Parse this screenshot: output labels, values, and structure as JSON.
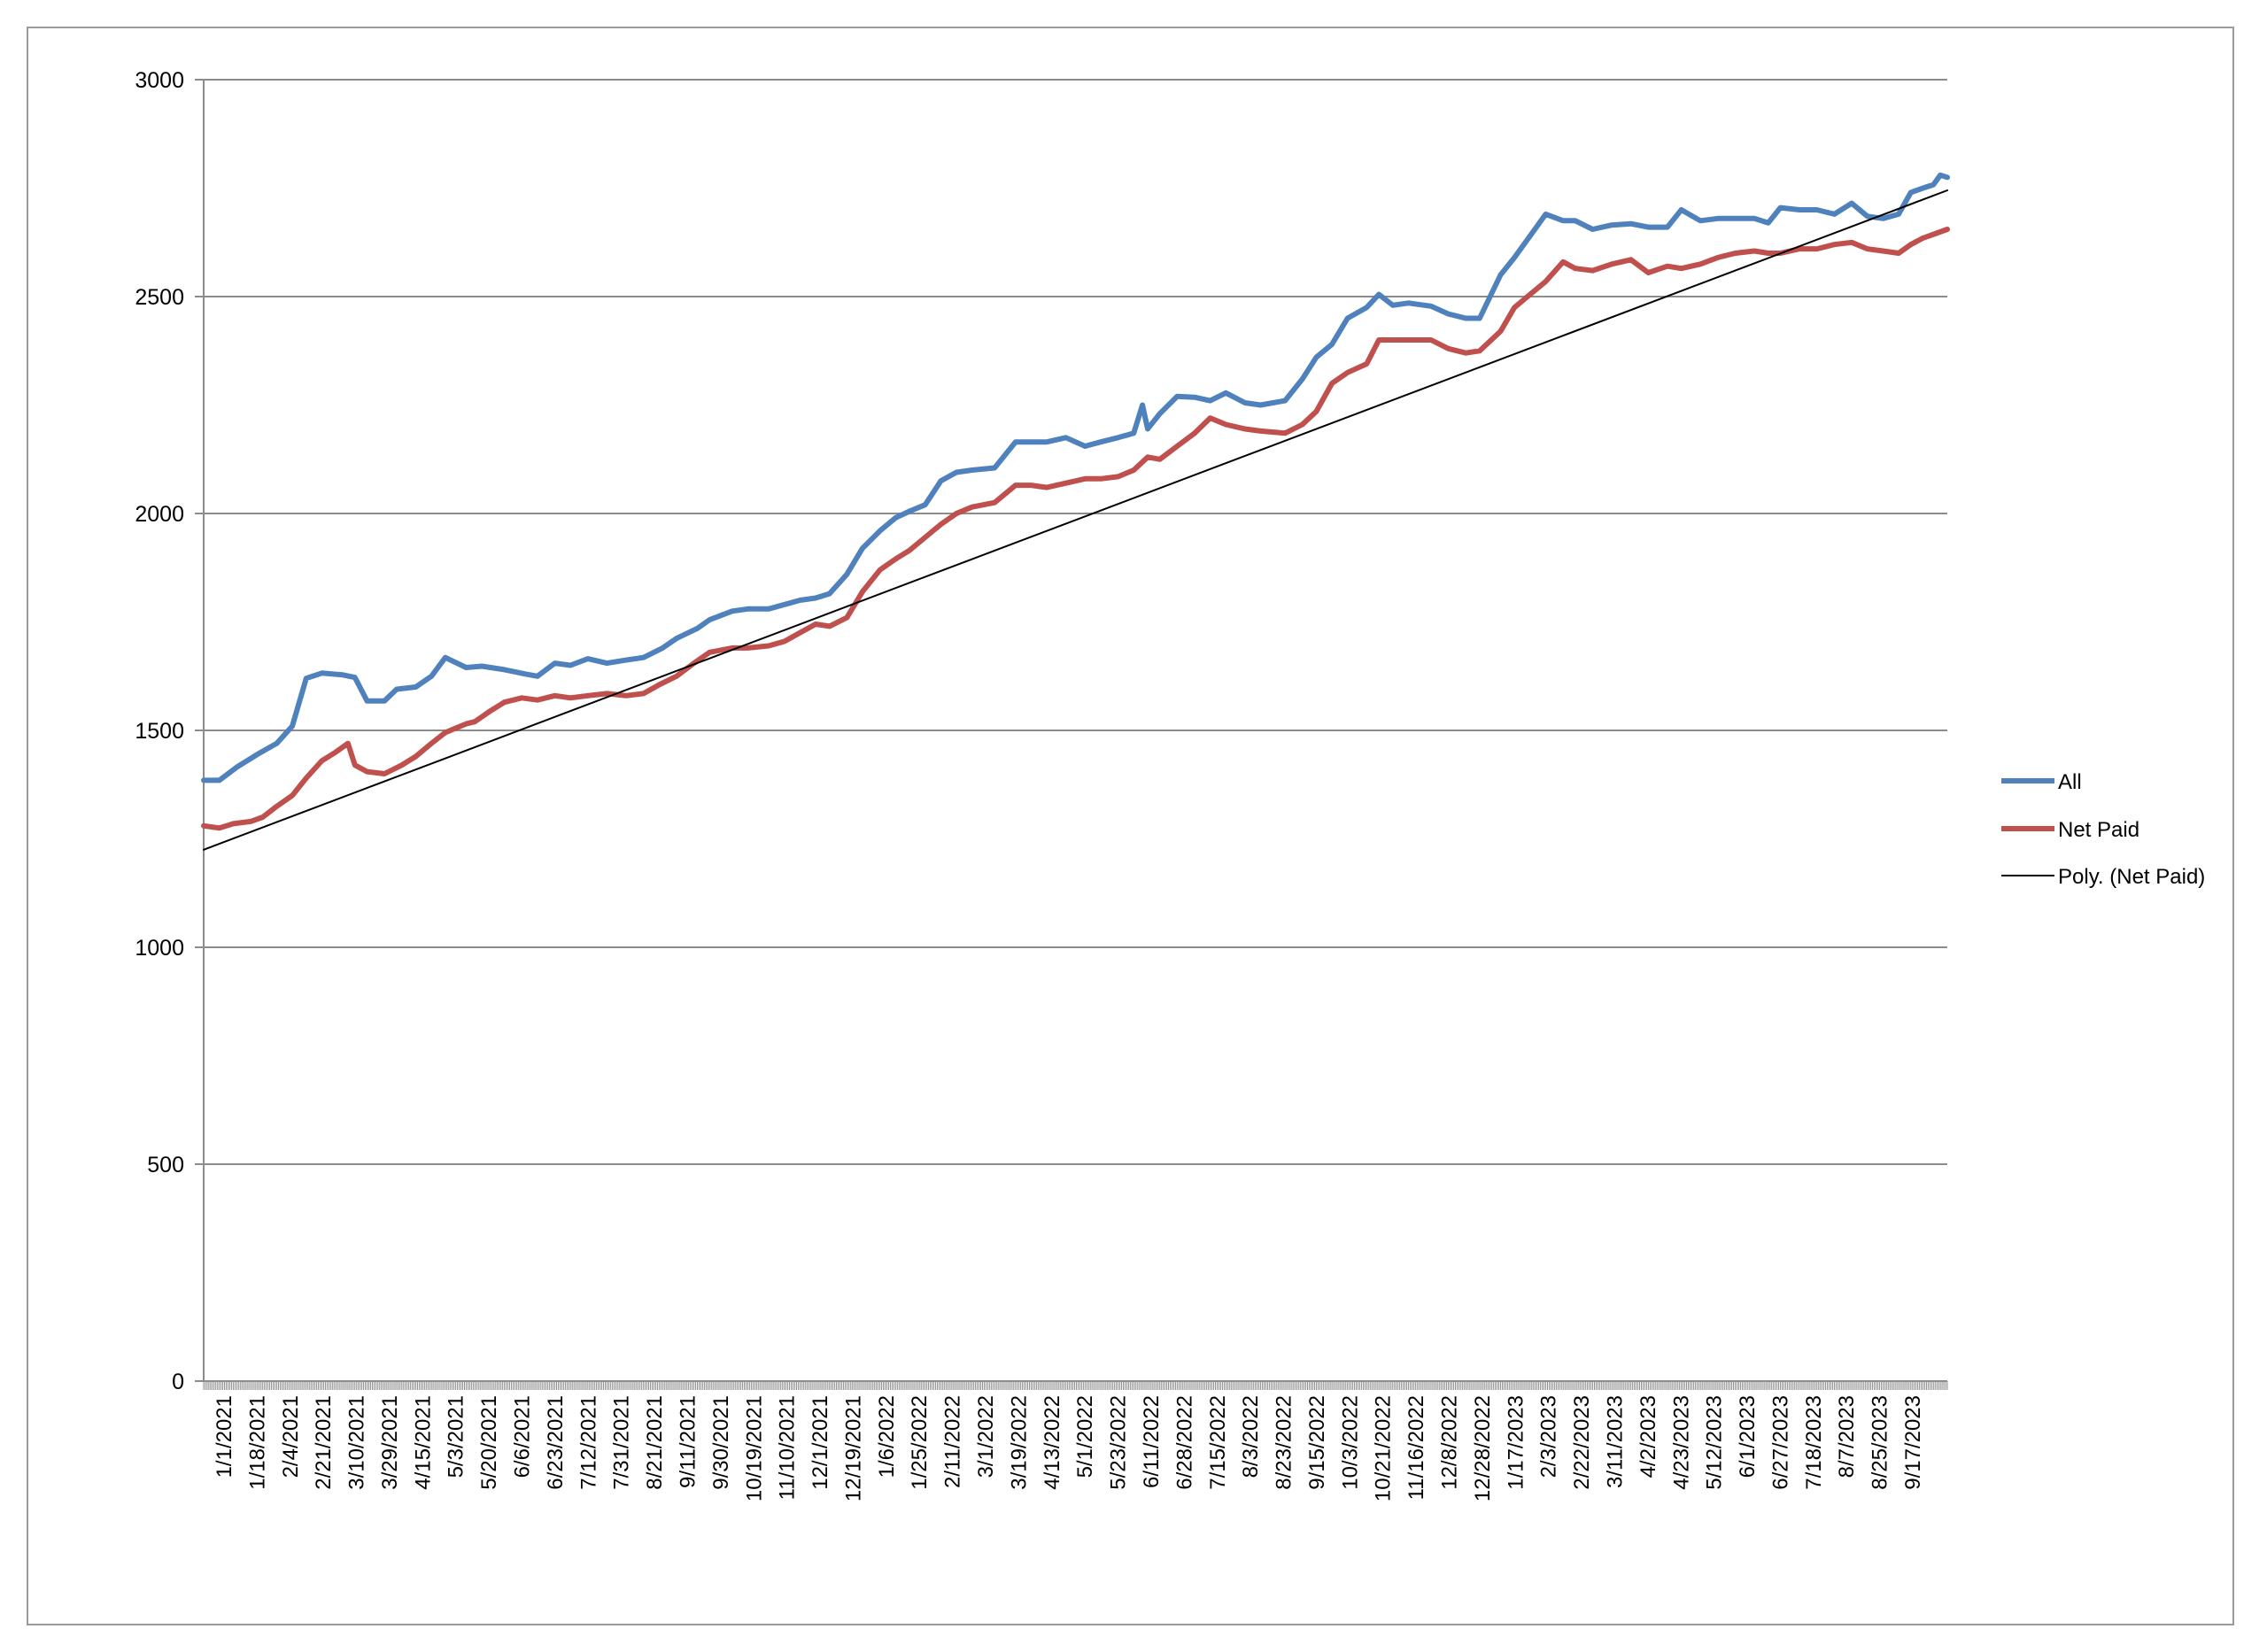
{
  "chart_data": {
    "type": "line",
    "title": "",
    "xlabel": "",
    "ylabel": "",
    "ylim": [
      0,
      3000
    ],
    "yticks": [
      0,
      500,
      1000,
      1500,
      2000,
      2500,
      3000
    ],
    "grid": true,
    "legend_position": "right",
    "x_tick_labels": [
      "1/1/2021",
      "1/18/2021",
      "2/4/2021",
      "2/21/2021",
      "3/10/2021",
      "3/29/2021",
      "4/15/2021",
      "5/3/2021",
      "5/20/2021",
      "6/6/2021",
      "6/23/2021",
      "7/12/2021",
      "7/31/2021",
      "8/21/2021",
      "9/11/2021",
      "9/30/2021",
      "10/19/2021",
      "11/10/2021",
      "12/1/2021",
      "12/19/2021",
      "1/6/2022",
      "1/25/2022",
      "2/11/2022",
      "3/1/2022",
      "3/19/2022",
      "4/13/2022",
      "5/1/2022",
      "5/23/2022",
      "6/11/2022",
      "6/28/2022",
      "7/15/2022",
      "8/3/2022",
      "8/23/2022",
      "9/15/2022",
      "10/3/2022",
      "10/21/2022",
      "11/16/2022",
      "12/8/2022",
      "12/28/2022",
      "1/17/2023",
      "2/3/2023",
      "2/22/2023",
      "3/11/2023",
      "4/2/2023",
      "4/23/2023",
      "5/12/2023",
      "6/1/2023",
      "6/27/2023",
      "7/18/2023",
      "8/7/2023",
      "8/25/2023",
      "9/17/2023"
    ],
    "x_range": [
      "1/1/2021",
      "10/1/2023"
    ],
    "series": [
      {
        "name": "All",
        "color": "#4f81bd",
        "points": [
          [
            "1/1/2021",
            1385
          ],
          [
            "1/10/2021",
            1385
          ],
          [
            "1/20/2021",
            1415
          ],
          [
            "2/1/2021",
            1445
          ],
          [
            "2/12/2021",
            1470
          ],
          [
            "2/21/2021",
            1510
          ],
          [
            "3/1/2021",
            1620
          ],
          [
            "3/10/2021",
            1632
          ],
          [
            "3/22/2021",
            1628
          ],
          [
            "3/29/2021",
            1622
          ],
          [
            "4/5/2021",
            1568
          ],
          [
            "4/15/2021",
            1568
          ],
          [
            "4/22/2021",
            1595
          ],
          [
            "5/3/2021",
            1600
          ],
          [
            "5/12/2021",
            1625
          ],
          [
            "5/20/2021",
            1668
          ],
          [
            "6/1/2021",
            1645
          ],
          [
            "6/10/2021",
            1648
          ],
          [
            "6/23/2021",
            1640
          ],
          [
            "7/5/2021",
            1630
          ],
          [
            "7/12/2021",
            1625
          ],
          [
            "7/22/2021",
            1655
          ],
          [
            "7/31/2021",
            1650
          ],
          [
            "8/10/2021",
            1665
          ],
          [
            "8/21/2021",
            1655
          ],
          [
            "9/1/2021",
            1662
          ],
          [
            "9/11/2021",
            1668
          ],
          [
            "9/22/2021",
            1690
          ],
          [
            "9/30/2021",
            1712
          ],
          [
            "10/12/2021",
            1735
          ],
          [
            "10/19/2021",
            1755
          ],
          [
            "11/1/2021",
            1775
          ],
          [
            "11/10/2021",
            1780
          ],
          [
            "11/22/2021",
            1780
          ],
          [
            "12/1/2021",
            1790
          ],
          [
            "12/10/2021",
            1800
          ],
          [
            "12/19/2021",
            1805
          ],
          [
            "12/27/2021",
            1815
          ],
          [
            "1/6/2022",
            1860
          ],
          [
            "1/15/2022",
            1920
          ],
          [
            "1/25/2022",
            1960
          ],
          [
            "2/3/2022",
            1990
          ],
          [
            "2/11/2022",
            2005
          ],
          [
            "2/20/2022",
            2020
          ],
          [
            "3/1/2022",
            2075
          ],
          [
            "3/10/2022",
            2095
          ],
          [
            "3/19/2022",
            2100
          ],
          [
            "4/1/2022",
            2105
          ],
          [
            "4/13/2022",
            2165
          ],
          [
            "4/22/2022",
            2165
          ],
          [
            "5/1/2022",
            2165
          ],
          [
            "5/12/2022",
            2175
          ],
          [
            "5/23/2022",
            2155
          ],
          [
            "6/1/2022",
            2165
          ],
          [
            "6/11/2022",
            2175
          ],
          [
            "6/20/2022",
            2185
          ],
          [
            "6/25/2022",
            2250
          ],
          [
            "6/28/2022",
            2195
          ],
          [
            "7/5/2022",
            2230
          ],
          [
            "7/15/2022",
            2270
          ],
          [
            "7/25/2022",
            2268
          ],
          [
            "8/3/2022",
            2260
          ],
          [
            "8/12/2022",
            2278
          ],
          [
            "8/23/2022",
            2255
          ],
          [
            "9/1/2022",
            2250
          ],
          [
            "9/15/2022",
            2260
          ],
          [
            "9/25/2022",
            2310
          ],
          [
            "10/3/2022",
            2360
          ],
          [
            "10/12/2022",
            2390
          ],
          [
            "10/21/2022",
            2450
          ],
          [
            "11/1/2022",
            2475
          ],
          [
            "11/8/2022",
            2505
          ],
          [
            "11/16/2022",
            2480
          ],
          [
            "11/25/2022",
            2485
          ],
          [
            "12/8/2022",
            2478
          ],
          [
            "12/18/2022",
            2460
          ],
          [
            "12/28/2022",
            2450
          ],
          [
            "1/5/2023",
            2450
          ],
          [
            "1/17/2023",
            2550
          ],
          [
            "1/25/2023",
            2590
          ],
          [
            "2/3/2023",
            2640
          ],
          [
            "2/12/2023",
            2690
          ],
          [
            "2/22/2023",
            2675
          ],
          [
            "3/1/2023",
            2675
          ],
          [
            "3/11/2023",
            2655
          ],
          [
            "3/22/2023",
            2665
          ],
          [
            "4/2/2023",
            2668
          ],
          [
            "4/12/2023",
            2660
          ],
          [
            "4/23/2023",
            2660
          ],
          [
            "5/1/2023",
            2700
          ],
          [
            "5/12/2023",
            2675
          ],
          [
            "5/22/2023",
            2680
          ],
          [
            "6/1/2023",
            2680
          ],
          [
            "6/12/2023",
            2680
          ],
          [
            "6/20/2023",
            2670
          ],
          [
            "6/27/2023",
            2705
          ],
          [
            "7/8/2023",
            2700
          ],
          [
            "7/18/2023",
            2700
          ],
          [
            "7/28/2023",
            2690
          ],
          [
            "8/7/2023",
            2715
          ],
          [
            "8/16/2023",
            2685
          ],
          [
            "8/25/2023",
            2680
          ],
          [
            "9/3/2023",
            2690
          ],
          [
            "9/10/2023",
            2740
          ],
          [
            "9/17/2023",
            2750
          ],
          [
            "9/23/2023",
            2758
          ],
          [
            "9/27/2023",
            2780
          ],
          [
            "10/1/2023",
            2775
          ]
        ]
      },
      {
        "name": "Net Paid",
        "color": "#c0504d",
        "points": [
          [
            "1/1/2021",
            1280
          ],
          [
            "1/10/2021",
            1275
          ],
          [
            "1/18/2021",
            1285
          ],
          [
            "1/28/2021",
            1290
          ],
          [
            "2/4/2021",
            1300
          ],
          [
            "2/12/2021",
            1325
          ],
          [
            "2/21/2021",
            1350
          ],
          [
            "3/1/2021",
            1390
          ],
          [
            "3/10/2021",
            1430
          ],
          [
            "3/18/2021",
            1450
          ],
          [
            "3/25/2021",
            1470
          ],
          [
            "3/29/2021",
            1420
          ],
          [
            "4/5/2021",
            1405
          ],
          [
            "4/15/2021",
            1400
          ],
          [
            "4/25/2021",
            1420
          ],
          [
            "5/3/2021",
            1440
          ],
          [
            "5/12/2021",
            1470
          ],
          [
            "5/20/2021",
            1495
          ],
          [
            "6/1/2021",
            1515
          ],
          [
            "6/6/2021",
            1520
          ],
          [
            "6/15/2021",
            1545
          ],
          [
            "6/23/2021",
            1565
          ],
          [
            "7/3/2021",
            1575
          ],
          [
            "7/12/2021",
            1570
          ],
          [
            "7/22/2021",
            1580
          ],
          [
            "7/31/2021",
            1575
          ],
          [
            "8/10/2021",
            1580
          ],
          [
            "8/21/2021",
            1585
          ],
          [
            "9/1/2021",
            1580
          ],
          [
            "9/11/2021",
            1585
          ],
          [
            "9/20/2021",
            1605
          ],
          [
            "9/30/2021",
            1625
          ],
          [
            "10/10/2021",
            1655
          ],
          [
            "10/19/2021",
            1680
          ],
          [
            "11/1/2021",
            1690
          ],
          [
            "11/10/2021",
            1690
          ],
          [
            "11/22/2021",
            1695
          ],
          [
            "12/1/2021",
            1705
          ],
          [
            "12/10/2021",
            1725
          ],
          [
            "12/19/2021",
            1745
          ],
          [
            "12/27/2021",
            1740
          ],
          [
            "1/6/2022",
            1760
          ],
          [
            "1/15/2022",
            1820
          ],
          [
            "1/25/2022",
            1870
          ],
          [
            "2/3/2022",
            1895
          ],
          [
            "2/11/2022",
            1915
          ],
          [
            "2/20/2022",
            1945
          ],
          [
            "3/1/2022",
            1975
          ],
          [
            "3/10/2022",
            2000
          ],
          [
            "3/19/2022",
            2015
          ],
          [
            "4/1/2022",
            2025
          ],
          [
            "4/13/2022",
            2065
          ],
          [
            "4/22/2022",
            2065
          ],
          [
            "5/1/2022",
            2060
          ],
          [
            "5/12/2022",
            2070
          ],
          [
            "5/23/2022",
            2080
          ],
          [
            "6/1/2022",
            2080
          ],
          [
            "6/11/2022",
            2085
          ],
          [
            "6/20/2022",
            2100
          ],
          [
            "6/28/2022",
            2130
          ],
          [
            "7/5/2022",
            2125
          ],
          [
            "7/15/2022",
            2155
          ],
          [
            "7/25/2022",
            2185
          ],
          [
            "8/3/2022",
            2220
          ],
          [
            "8/12/2022",
            2205
          ],
          [
            "8/23/2022",
            2195
          ],
          [
            "9/1/2022",
            2190
          ],
          [
            "9/15/2022",
            2185
          ],
          [
            "9/25/2022",
            2205
          ],
          [
            "10/3/2022",
            2235
          ],
          [
            "10/12/2022",
            2300
          ],
          [
            "10/21/2022",
            2325
          ],
          [
            "11/1/2022",
            2345
          ],
          [
            "11/8/2022",
            2400
          ],
          [
            "11/16/2022",
            2400
          ],
          [
            "11/25/2022",
            2400
          ],
          [
            "12/8/2022",
            2400
          ],
          [
            "12/18/2022",
            2380
          ],
          [
            "12/28/2022",
            2370
          ],
          [
            "1/5/2023",
            2375
          ],
          [
            "1/17/2023",
            2420
          ],
          [
            "1/25/2023",
            2475
          ],
          [
            "2/3/2023",
            2505
          ],
          [
            "2/12/2023",
            2535
          ],
          [
            "2/22/2023",
            2580
          ],
          [
            "3/1/2023",
            2565
          ],
          [
            "3/11/2023",
            2560
          ],
          [
            "3/22/2023",
            2575
          ],
          [
            "4/2/2023",
            2585
          ],
          [
            "4/12/2023",
            2555
          ],
          [
            "4/23/2023",
            2570
          ],
          [
            "5/1/2023",
            2565
          ],
          [
            "5/12/2023",
            2575
          ],
          [
            "5/22/2023",
            2590
          ],
          [
            "6/1/2023",
            2600
          ],
          [
            "6/12/2023",
            2605
          ],
          [
            "6/20/2023",
            2600
          ],
          [
            "6/27/2023",
            2600
          ],
          [
            "7/8/2023",
            2610
          ],
          [
            "7/18/2023",
            2610
          ],
          [
            "7/28/2023",
            2620
          ],
          [
            "8/7/2023",
            2625
          ],
          [
            "8/16/2023",
            2610
          ],
          [
            "8/25/2023",
            2605
          ],
          [
            "9/3/2023",
            2600
          ],
          [
            "9/10/2023",
            2620
          ],
          [
            "9/17/2023",
            2635
          ],
          [
            "9/24/2023",
            2645
          ],
          [
            "10/1/2023",
            2655
          ]
        ]
      },
      {
        "name": "Poly. (Net Paid)",
        "color": "#000000",
        "points": [
          [
            "1/1/2021",
            1225
          ],
          [
            "10/1/2023",
            2745
          ]
        ]
      }
    ]
  }
}
